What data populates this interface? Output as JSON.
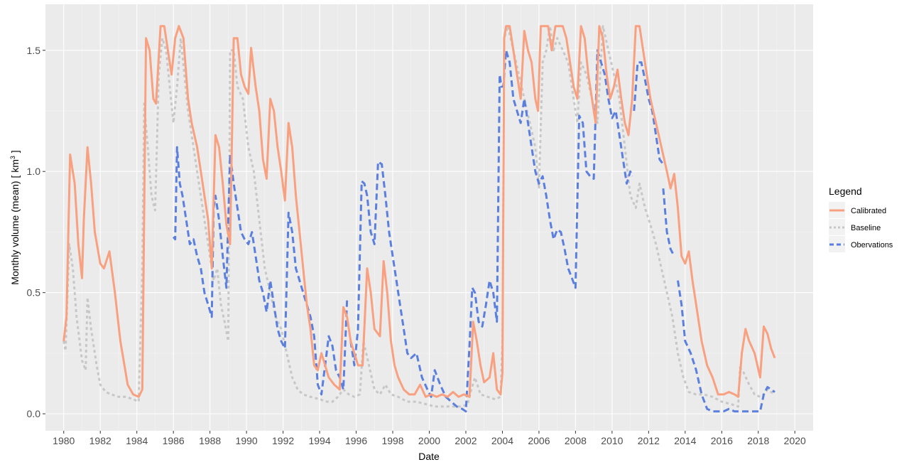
{
  "chart_data": {
    "type": "line",
    "xlabel": "Date",
    "ylabel": "Monthly volume (mean) [ km³ ]",
    "ylabel_main": "Monthly volume (mean) [ km",
    "ylabel_sup": "3",
    "ylabel_end": " ]",
    "xlim": [
      1979.0,
      2021.0
    ],
    "ylim": [
      -0.07,
      1.69
    ],
    "x_ticks": [
      1980,
      1982,
      1984,
      1986,
      1988,
      1990,
      1992,
      1994,
      1996,
      1998,
      2000,
      2002,
      2004,
      2006,
      2008,
      2010,
      2012,
      2014,
      2016,
      2018,
      2020
    ],
    "x_tick_labels": [
      "1980",
      "1982",
      "1984",
      "1986",
      "1988",
      "1990",
      "1992",
      "1994",
      "1996",
      "1998",
      "2000",
      "2002",
      "2004",
      "2006",
      "2008",
      "2010",
      "2012",
      "2014",
      "2016",
      "2018",
      "2020"
    ],
    "y_ticks": [
      0.0,
      0.5,
      1.0,
      1.5
    ],
    "y_tick_labels": [
      "0.0",
      "0.5",
      "1.0",
      "1.5"
    ],
    "grid": true,
    "legend": {
      "title": "Legend",
      "position": "right"
    },
    "series": [
      {
        "name": "Calibrated",
        "color": "#f8a07f",
        "style": "solid",
        "x": [
          1980.0,
          1980.15,
          1980.35,
          1980.6,
          1980.8,
          1981.0,
          1981.1,
          1981.3,
          1981.5,
          1981.7,
          1982.0,
          1982.2,
          1982.5,
          1982.8,
          1983.1,
          1983.5,
          1983.8,
          1984.1,
          1984.3,
          1984.5,
          1984.7,
          1984.9,
          1985.05,
          1985.3,
          1985.5,
          1985.7,
          1985.9,
          1986.1,
          1986.3,
          1986.55,
          1986.8,
          1987.0,
          1987.3,
          1987.5,
          1987.7,
          1987.9,
          1988.1,
          1988.3,
          1988.5,
          1988.7,
          1988.9,
          1989.1,
          1989.3,
          1989.5,
          1989.7,
          1989.9,
          1990.1,
          1990.25,
          1990.5,
          1990.7,
          1990.9,
          1991.1,
          1991.3,
          1991.5,
          1991.7,
          1991.9,
          1992.1,
          1992.3,
          1992.5,
          1992.7,
          1992.9,
          1993.1,
          1993.3,
          1993.5,
          1993.7,
          1993.9,
          1994.1,
          1994.3,
          1994.5,
          1994.8,
          1995.1,
          1995.3,
          1995.5,
          1995.7,
          1995.9,
          1996.1,
          1996.35,
          1996.6,
          1996.8,
          1997.0,
          1997.3,
          1997.5,
          1997.7,
          1997.9,
          1998.1,
          1998.3,
          1998.6,
          1998.9,
          1999.2,
          1999.5,
          1999.8,
          2000.1,
          2000.4,
          2000.7,
          2001.0,
          2001.3,
          2001.6,
          2001.9,
          2002.2,
          2002.4,
          2002.6,
          2002.8,
          2003.0,
          2003.3,
          2003.5,
          2003.7,
          2003.9,
          2004.0,
          2004.1,
          2004.2,
          2004.4,
          2004.6,
          2004.8,
          2005.0,
          2005.2,
          2005.4,
          2005.6,
          2005.8,
          2005.95,
          2006.1,
          2006.3,
          2006.5,
          2006.7,
          2006.9,
          2007.1,
          2007.3,
          2007.5,
          2007.7,
          2007.9,
          2008.1,
          2008.3,
          2008.5,
          2008.7,
          2008.9,
          2009.1,
          2009.3,
          2009.5,
          2009.7,
          2009.9,
          2010.1,
          2010.3,
          2010.5,
          2010.7,
          2010.9,
          2011.1,
          2011.3,
          2011.5,
          2011.7,
          2011.9,
          2012.1,
          2012.4,
          2012.7,
          2013.0,
          2013.2,
          2013.4,
          2013.6,
          2013.8,
          2014.0,
          2014.2,
          2014.4,
          2014.6,
          2014.9,
          2015.2,
          2015.5,
          2015.8,
          2016.1,
          2016.4,
          2016.7,
          2016.9,
          2017.1,
          2017.3,
          2017.5,
          2017.8,
          2018.1,
          2018.3,
          2018.5,
          2018.7,
          2018.9
        ],
        "y": [
          0.3,
          0.4,
          1.07,
          0.95,
          0.7,
          0.56,
          0.8,
          1.1,
          0.95,
          0.75,
          0.62,
          0.6,
          0.67,
          0.5,
          0.3,
          0.12,
          0.08,
          0.07,
          0.1,
          1.55,
          1.5,
          1.3,
          1.28,
          1.6,
          1.6,
          1.5,
          1.4,
          1.55,
          1.6,
          1.55,
          1.3,
          1.2,
          1.1,
          1.0,
          0.9,
          0.8,
          0.6,
          1.15,
          1.1,
          0.95,
          0.78,
          0.7,
          1.55,
          1.55,
          1.4,
          1.35,
          1.32,
          1.51,
          1.35,
          1.25,
          1.05,
          0.97,
          1.3,
          1.25,
          1.1,
          1.0,
          0.88,
          1.2,
          1.1,
          0.9,
          0.75,
          0.6,
          0.45,
          0.35,
          0.2,
          0.18,
          0.25,
          0.2,
          0.15,
          0.12,
          0.1,
          0.44,
          0.4,
          0.3,
          0.25,
          0.2,
          0.2,
          0.6,
          0.5,
          0.35,
          0.32,
          0.63,
          0.5,
          0.3,
          0.2,
          0.15,
          0.1,
          0.08,
          0.08,
          0.12,
          0.07,
          0.08,
          0.07,
          0.08,
          0.07,
          0.09,
          0.07,
          0.08,
          0.07,
          0.38,
          0.3,
          0.2,
          0.13,
          0.15,
          0.25,
          0.1,
          0.08,
          0.17,
          1.55,
          1.6,
          1.6,
          1.5,
          1.4,
          1.3,
          1.58,
          1.5,
          1.45,
          1.3,
          1.25,
          1.6,
          1.6,
          1.6,
          1.5,
          1.6,
          1.6,
          1.6,
          1.55,
          1.45,
          1.35,
          1.3,
          1.6,
          1.55,
          1.4,
          1.3,
          1.2,
          1.6,
          1.55,
          1.4,
          1.3,
          1.35,
          1.42,
          1.3,
          1.2,
          1.15,
          1.3,
          1.6,
          1.6,
          1.5,
          1.4,
          1.3,
          1.2,
          1.1,
          1.0,
          0.93,
          0.99,
          0.85,
          0.65,
          0.62,
          0.67,
          0.55,
          0.45,
          0.3,
          0.2,
          0.15,
          0.08,
          0.08,
          0.09,
          0.08,
          0.07,
          0.25,
          0.35,
          0.3,
          0.25,
          0.15,
          0.36,
          0.33,
          0.27,
          0.23
        ]
      },
      {
        "name": "Baseline",
        "color": "#c7c7c7",
        "style": "dotted",
        "x": [
          1980.0,
          1980.1,
          1980.3,
          1980.5,
          1980.7,
          1981.0,
          1981.2,
          1981.3,
          1981.5,
          1981.8,
          1982.0,
          1982.3,
          1982.6,
          1983.0,
          1983.4,
          1983.8,
          1984.1,
          1984.3,
          1984.4,
          1984.6,
          1984.8,
          1985.0,
          1985.2,
          1985.4,
          1985.6,
          1985.8,
          1986.0,
          1986.2,
          1986.4,
          1986.6,
          1986.8,
          1987.0,
          1987.3,
          1987.6,
          1987.9,
          1988.2,
          1988.4,
          1988.6,
          1988.8,
          1989.0,
          1989.1,
          1989.3,
          1989.5,
          1989.8,
          1990.1,
          1990.4,
          1990.7,
          1991.0,
          1991.3,
          1991.6,
          1991.9,
          1992.2,
          1992.5,
          1992.8,
          1993.1,
          1993.5,
          1994.0,
          1994.4,
          1994.7,
          1995.0,
          1995.3,
          1995.6,
          1995.9,
          1996.2,
          1996.4,
          1996.7,
          1997.0,
          1997.3,
          1997.6,
          1997.9,
          1998.3,
          1998.8,
          1999.3,
          1999.8,
          2000.3,
          2000.8,
          2001.3,
          2001.8,
          2002.1,
          2002.3,
          2002.5,
          2002.8,
          2003.2,
          2003.6,
          2003.9,
          2004.0,
          2004.1,
          2004.3,
          2004.6,
          2004.9,
          2005.2,
          2005.5,
          2005.8,
          2006.0,
          2006.2,
          2006.4,
          2006.6,
          2006.8,
          2007.0,
          2007.3,
          2007.6,
          2007.9,
          2008.1,
          2008.3,
          2008.6,
          2008.9,
          2009.2,
          2009.5,
          2009.8,
          2010.1,
          2010.4,
          2010.7,
          2011.0,
          2011.3,
          2011.5,
          2011.8,
          2012.1,
          2012.4,
          2012.7,
          2013.0,
          2013.3,
          2013.6,
          2013.9,
          2014.2,
          2014.6,
          2015.0,
          2015.5,
          2016.0,
          2016.5,
          2016.9,
          2017.0,
          2017.2,
          2017.5,
          2017.8,
          2018.1,
          2018.3,
          2018.5,
          2018.7,
          2018.9
        ],
        "y": [
          0.3,
          0.26,
          0.7,
          0.6,
          0.4,
          0.22,
          0.18,
          0.48,
          0.35,
          0.2,
          0.12,
          0.09,
          0.08,
          0.07,
          0.07,
          0.06,
          0.05,
          0.6,
          1.28,
          1.1,
          0.9,
          0.84,
          1.4,
          1.55,
          1.5,
          1.35,
          1.2,
          1.35,
          1.55,
          1.4,
          1.25,
          1.15,
          1.0,
          0.85,
          0.7,
          0.55,
          0.6,
          0.45,
          0.38,
          0.3,
          1.5,
          1.5,
          1.35,
          1.3,
          1.1,
          1.0,
          0.8,
          0.6,
          0.5,
          0.4,
          0.35,
          0.25,
          0.15,
          0.1,
          0.08,
          0.07,
          0.06,
          0.05,
          0.05,
          0.07,
          0.1,
          0.08,
          0.07,
          0.08,
          0.3,
          0.2,
          0.1,
          0.08,
          0.12,
          0.08,
          0.07,
          0.05,
          0.05,
          0.04,
          0.03,
          0.03,
          0.03,
          0.03,
          0.04,
          0.1,
          0.15,
          0.08,
          0.07,
          0.06,
          0.07,
          0.3,
          1.55,
          1.6,
          1.5,
          1.4,
          1.3,
          1.2,
          1.1,
          0.93,
          1.45,
          1.5,
          1.6,
          1.5,
          1.55,
          1.5,
          1.45,
          1.3,
          1.2,
          1.45,
          1.4,
          1.3,
          1.2,
          1.6,
          1.5,
          1.4,
          1.3,
          1.1,
          0.9,
          0.85,
          0.95,
          0.85,
          0.78,
          0.7,
          0.6,
          0.5,
          0.4,
          0.25,
          0.15,
          0.09,
          0.08,
          0.08,
          0.07,
          0.05,
          0.04,
          0.03,
          0.19,
          0.17,
          0.12,
          0.08,
          0.07,
          0.08,
          0.1,
          0.09,
          0.08
        ]
      },
      {
        "name": "Obervations",
        "color": "#5a7fde",
        "style": "dashed",
        "segments": [
          {
            "x": [
              1986.0,
              1986.1,
              1986.2,
              1986.35,
              1986.5,
              1986.7,
              1986.9,
              1987.1,
              1987.3,
              1987.5,
              1987.7,
              1987.9,
              1988.1,
              1988.2,
              1988.3,
              1988.5,
              1988.7,
              1988.9,
              1989.1,
              1989.3,
              1989.5,
              1989.7,
              1989.9,
              1990.1,
              1990.3,
              1990.5,
              1990.7,
              1990.9,
              1991.1,
              1991.3,
              1991.5,
              1991.7,
              1991.9,
              1992.1,
              1992.3,
              1992.5,
              1992.7,
              1992.9,
              1993.1,
              1993.3,
              1993.5,
              1993.7,
              1993.9,
              1994.1,
              1994.3,
              1994.5,
              1994.7,
              1994.9,
              1995.1,
              1995.3,
              1995.5
            ],
            "y": [
              0.73,
              0.72,
              1.1,
              0.95,
              0.9,
              0.8,
              0.7,
              0.72,
              0.65,
              0.6,
              0.5,
              0.45,
              0.4,
              0.85,
              0.9,
              0.8,
              0.65,
              0.52,
              1.07,
              0.95,
              0.85,
              0.75,
              0.72,
              0.7,
              0.75,
              0.65,
              0.55,
              0.5,
              0.42,
              0.55,
              0.45,
              0.35,
              0.3,
              0.27,
              0.83,
              0.75,
              0.6,
              0.55,
              0.5,
              0.45,
              0.4,
              0.32,
              0.12,
              0.08,
              0.2,
              0.32,
              0.28,
              0.18,
              0.15,
              0.1,
              0.47
            ]
          },
          {
            "x": [
              1995.7,
              1995.9,
              1996.1,
              1996.3,
              1996.45,
              1996.6,
              1996.8,
              1997.0,
              1997.2,
              1997.4,
              1997.6,
              1997.8,
              1998.0,
              1998.2,
              1998.4,
              1998.6,
              1998.8,
              1999.0,
              1999.3,
              1999.6,
              1999.9,
              2000.1,
              2000.3,
              2000.6,
              2000.9,
              2001.2,
              2001.5,
              2001.8,
              2002.0,
              2002.2,
              2002.35,
              2002.5,
              2002.7,
              2002.9,
              2003.1,
              2003.3,
              2003.5,
              2003.7,
              2003.85,
              2003.95,
              2004.05,
              2004.2,
              2004.4,
              2004.6,
              2004.8,
              2005.0,
              2005.2,
              2005.4,
              2005.6,
              2005.8,
              2006.0,
              2006.2,
              2006.4,
              2006.6,
              2006.8,
              2007.0,
              2007.2,
              2007.4,
              2007.6,
              2007.8,
              2008.0,
              2008.2,
              2008.4,
              2008.6,
              2008.8,
              2009.0,
              2009.2,
              2009.4,
              2009.6,
              2009.8,
              2010.0,
              2010.2,
              2010.4,
              2010.6,
              2010.8,
              2011.0,
              2011.1
            ],
            "y": [
              0.3,
              0.2,
              0.35,
              0.96,
              0.95,
              0.9,
              0.75,
              0.7,
              1.04,
              1.03,
              0.9,
              0.75,
              0.65,
              0.55,
              0.45,
              0.35,
              0.25,
              0.23,
              0.25,
              0.15,
              0.1,
              0.07,
              0.18,
              0.12,
              0.07,
              0.05,
              0.03,
              0.02,
              0.01,
              0.28,
              0.52,
              0.5,
              0.38,
              0.36,
              0.45,
              0.55,
              0.5,
              0.38,
              1.4,
              1.35,
              1.35,
              1.5,
              1.45,
              1.3,
              1.25,
              1.2,
              1.3,
              1.2,
              1.1,
              1.0,
              0.95,
              0.98,
              0.9,
              0.8,
              0.72,
              0.76,
              0.75,
              0.68,
              0.6,
              0.56,
              0.52,
              1.23,
              1.2,
              1.0,
              0.98,
              0.97,
              1.5,
              1.45,
              1.4,
              1.3,
              1.22,
              1.25,
              1.15,
              1.05,
              0.95,
              1.0,
              0.98
            ]
          },
          {
            "x": [
              2011.2,
              2011.4,
              2011.6,
              2011.8,
              2012.0,
              2012.2,
              2012.4,
              2012.6,
              2012.8
            ],
            "y": [
              1.25,
              1.45,
              1.45,
              1.38,
              1.3,
              1.25,
              1.15,
              1.05,
              1.03
            ]
          },
          {
            "x": [
              2012.8,
              2013.0,
              2013.2,
              2013.4
            ],
            "y": [
              0.93,
              0.75,
              0.68,
              0.65
            ]
          },
          {
            "x": [
              2013.6,
              2013.8,
              2014.0,
              2014.3,
              2014.6,
              2014.9,
              2015.2,
              2015.5,
              2015.8,
              2016.1,
              2016.4,
              2016.7,
              2017.0,
              2017.3,
              2017.6,
              2017.9,
              2018.1,
              2018.3,
              2018.5,
              2018.7,
              2018.9
            ],
            "y": [
              0.55,
              0.45,
              0.3,
              0.25,
              0.18,
              0.08,
              0.02,
              0.01,
              0.01,
              0.01,
              0.02,
              0.01,
              0.01,
              0.01,
              0.01,
              0.01,
              0.01,
              0.08,
              0.11,
              0.1,
              0.09
            ]
          }
        ]
      }
    ]
  }
}
